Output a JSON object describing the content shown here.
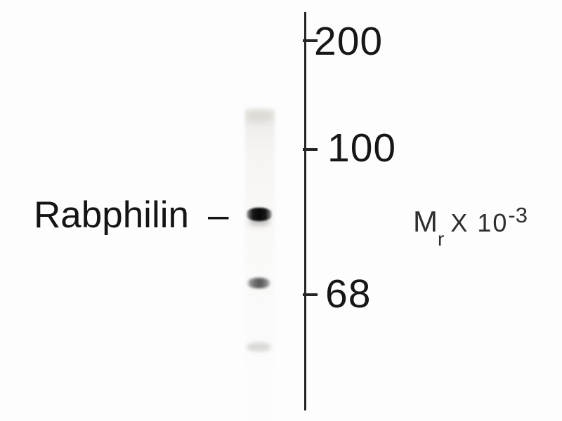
{
  "figure": {
    "type": "western-blot",
    "band_label": {
      "text": "Rabphilin",
      "pointer": "–"
    },
    "mw_axis": {
      "markers": [
        {
          "label": "200"
        },
        {
          "label": "100"
        },
        {
          "label": "68"
        }
      ],
      "unit": {
        "symbol": "M",
        "subscript": "r",
        "multiplier": "X 10",
        "exponent": "-3"
      }
    },
    "blot": {
      "lane_count": 1,
      "bands": [
        {
          "name": "rabphilin-band",
          "intensity": "strong",
          "aligned_with_label": "Rabphilin"
        },
        {
          "name": "lower-band",
          "intensity": "moderate"
        },
        {
          "name": "lowest-band",
          "intensity": "very-faint"
        }
      ]
    },
    "colors": {
      "ink": "#1b1b1b",
      "background": "#fdfdfd"
    }
  }
}
